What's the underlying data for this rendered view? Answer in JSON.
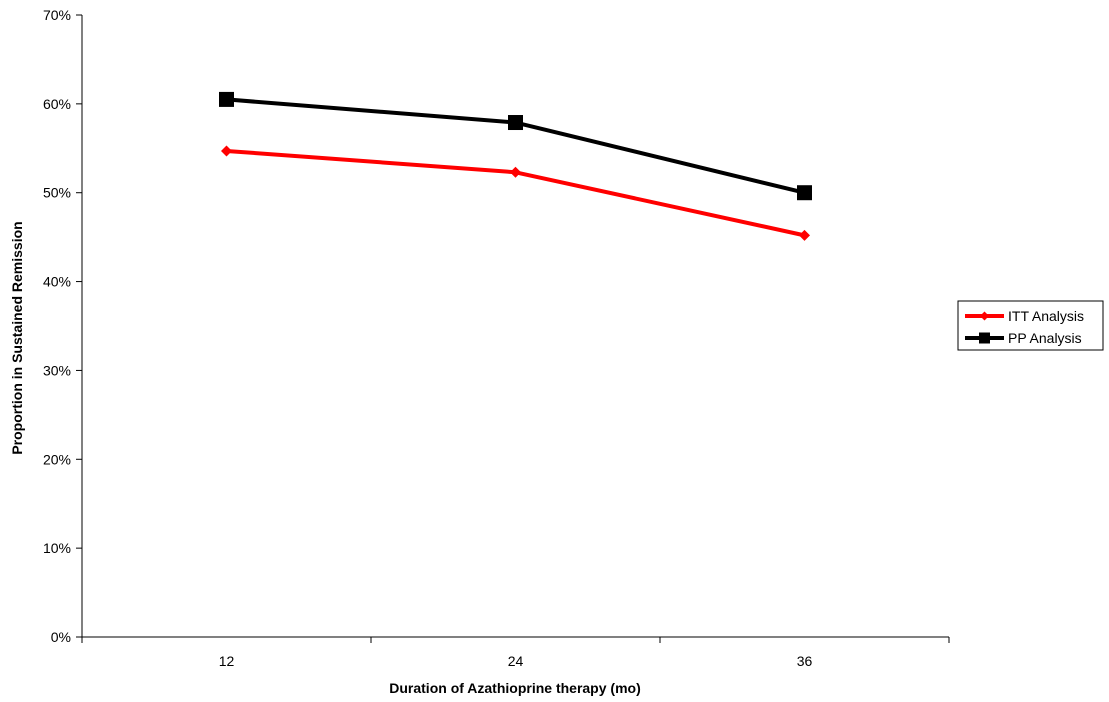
{
  "chart_data": {
    "type": "line",
    "categories": [
      "12",
      "24",
      "36"
    ],
    "series": [
      {
        "name": "ITT Analysis",
        "values": [
          0.547,
          0.523,
          0.452
        ],
        "color": "#ff0000",
        "marker": "diamond"
      },
      {
        "name": "PP Analysis",
        "values": [
          0.605,
          0.579,
          0.5
        ],
        "color": "#000000",
        "marker": "square"
      }
    ],
    "xlabel": "Duration of Azathioprine therapy (mo)",
    "ylabel": "Proportion in Sustained Remission",
    "ylim": [
      0,
      0.7
    ],
    "yticks": [
      "0%",
      "10%",
      "20%",
      "30%",
      "40%",
      "50%",
      "60%",
      "70%"
    ],
    "grid": false,
    "legend_position": "right"
  }
}
